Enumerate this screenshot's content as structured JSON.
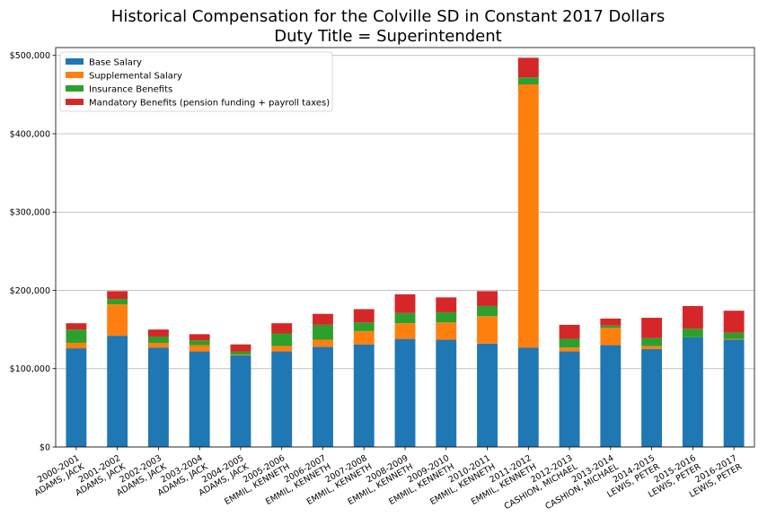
{
  "chart_data": {
    "type": "bar",
    "stacked": true,
    "title": "Historical Compensation for the Colville SD in Constant 2017 Dollars",
    "subtitle": "Duty Title = Superintendent",
    "categories": [
      [
        "2000-2001",
        "ADAMS, JACK"
      ],
      [
        "2001-2002",
        "ADAMS, JACK"
      ],
      [
        "2002-2003",
        "ADAMS, JACK"
      ],
      [
        "2003-2004",
        "ADAMS, JACK"
      ],
      [
        "2004-2005",
        "ADAMS, JACK"
      ],
      [
        "2005-2006",
        "EMMIL, KENNETH"
      ],
      [
        "2006-2007",
        "EMMIL, KENNETH"
      ],
      [
        "2007-2008",
        "EMMIL, KENNETH"
      ],
      [
        "2008-2009",
        "EMMIL, KENNETH"
      ],
      [
        "2009-2010",
        "EMMIL, KENNETH"
      ],
      [
        "2010-2011",
        "EMMIL, KENNETH"
      ],
      [
        "2011-2012",
        "EMMIL, KENNETH"
      ],
      [
        "2012-2013",
        "CASHION, MICHAEL"
      ],
      [
        "2013-2014",
        "CASHION, MICHAEL"
      ],
      [
        "2014-2015",
        "LEWIS, PETER"
      ],
      [
        "2015-2016",
        "LEWIS, PETER"
      ],
      [
        "2016-2017",
        "LEWIS, PETER"
      ]
    ],
    "series": [
      {
        "name": "Base Salary",
        "color": "#1f77b4",
        "values": [
          126000,
          142000,
          127000,
          122000,
          117000,
          122000,
          128000,
          131000,
          138000,
          137000,
          132000,
          127000,
          122000,
          130000,
          125000,
          140000,
          137000
        ]
      },
      {
        "name": "Supplemental Salary",
        "color": "#ff7f0e",
        "values": [
          7000,
          40000,
          6000,
          8000,
          1000,
          7000,
          9000,
          17000,
          20000,
          22000,
          35000,
          336000,
          5000,
          22000,
          4000,
          0,
          1000
        ]
      },
      {
        "name": "Insurance Benefits",
        "color": "#2ca02c",
        "values": [
          17000,
          7000,
          8000,
          6000,
          4000,
          16000,
          19000,
          11000,
          13000,
          13000,
          13000,
          9000,
          11000,
          3000,
          10000,
          11000,
          8000
        ]
      },
      {
        "name": "Mandatory Benefits (pension funding + payroll taxes)",
        "color": "#d62728",
        "values": [
          8000,
          10000,
          9000,
          8000,
          9000,
          13000,
          14000,
          17000,
          24000,
          19000,
          19000,
          25000,
          18000,
          9000,
          26000,
          29000,
          28000
        ]
      }
    ],
    "ylim": [
      0,
      510000
    ],
    "yticks": [
      0,
      100000,
      200000,
      300000,
      400000,
      500000
    ],
    "ytick_labels": [
      "$0",
      "$100,000",
      "$200,000",
      "$300,000",
      "$400,000",
      "$500,000"
    ],
    "grid": "horizontal",
    "legend": "top-left"
  }
}
